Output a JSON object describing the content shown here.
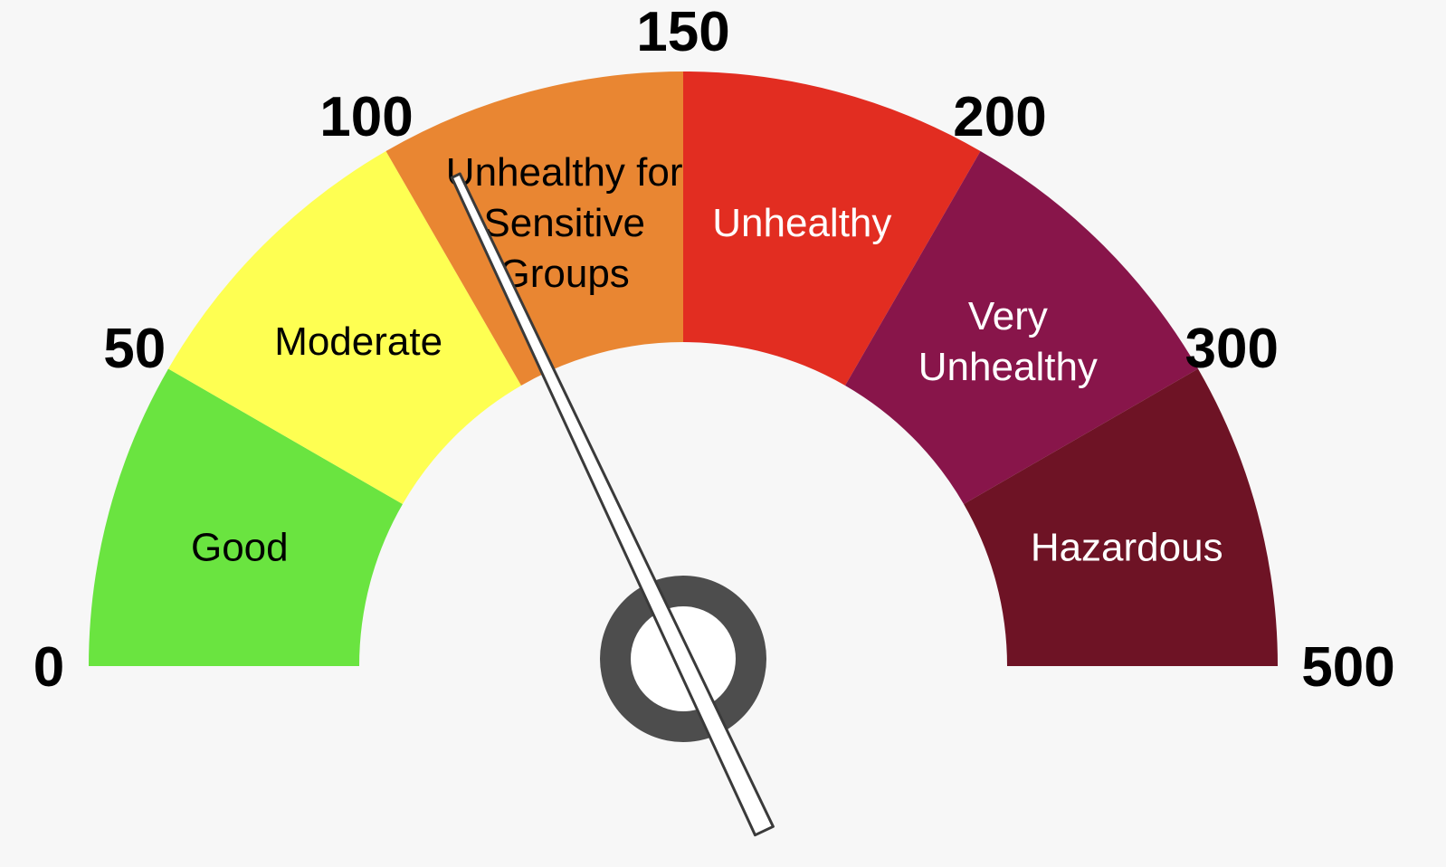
{
  "chart_data": {
    "type": "gauge",
    "ticks": [
      {
        "value": 0,
        "label": "0"
      },
      {
        "value": 50,
        "label": "50"
      },
      {
        "value": 100,
        "label": "100"
      },
      {
        "value": 150,
        "label": "150"
      },
      {
        "value": 200,
        "label": "200"
      },
      {
        "value": 300,
        "label": "300"
      },
      {
        "value": 500,
        "label": "500"
      }
    ],
    "bands": [
      {
        "name": "good",
        "from": 0,
        "to": 50,
        "lines": [
          "Good"
        ],
        "color": "#6ae440",
        "text_color": "#000000"
      },
      {
        "name": "moderate",
        "from": 50,
        "to": 100,
        "lines": [
          "Moderate"
        ],
        "color": "#feff52",
        "text_color": "#000000"
      },
      {
        "name": "usg",
        "from": 100,
        "to": 150,
        "lines": [
          "Unhealthy for",
          "Sensitive",
          "Groups"
        ],
        "color": "#e98632",
        "text_color": "#000000"
      },
      {
        "name": "unhealthy",
        "from": 150,
        "to": 200,
        "lines": [
          "Unhealthy"
        ],
        "color": "#e22d21",
        "text_color": "#ffffff"
      },
      {
        "name": "very-unhealthy",
        "from": 200,
        "to": 300,
        "lines": [
          "Very",
          "Unhealthy"
        ],
        "color": "#88154a",
        "text_color": "#ffffff"
      },
      {
        "name": "hazardous",
        "from": 300,
        "to": 500,
        "lines": [
          "Hazardous"
        ],
        "color": "#6e1325",
        "text_color": "#ffffff"
      }
    ],
    "needle_value": 108,
    "needle_color": "#ffffff",
    "hub_color": "#4d4d4d"
  }
}
